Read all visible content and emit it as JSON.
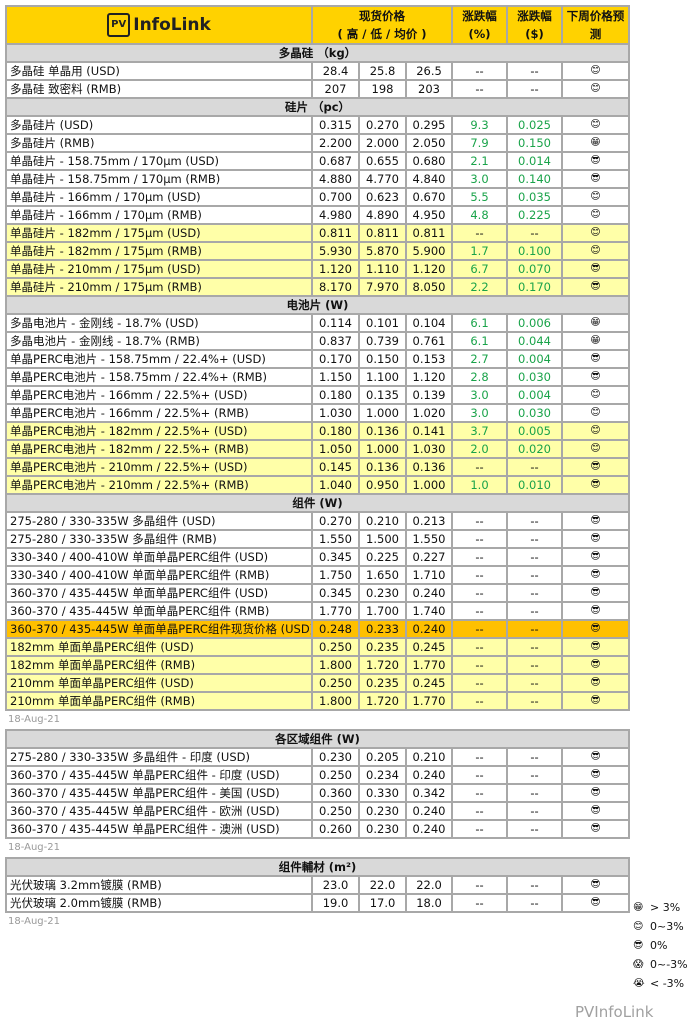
{
  "header": {
    "logo": "PV InfoLink",
    "logo_pv": "PV",
    "logo_text": "InfoLink",
    "price_line1": "现货价格",
    "price_line2": "( 高 / 低 / 均价 )",
    "chg_pct_line1": "涨跌幅",
    "chg_pct_line2": "(%)",
    "chg_abs_line1": "涨跌幅",
    "chg_abs_line2": "($)",
    "forecast_line1": "下周价格预",
    "forecast_line2": "测"
  },
  "emoji": {
    "grin": "😁",
    "smile": "😊",
    "cool": "😎",
    "scream": "😱",
    "cry": "😭"
  },
  "colors": {
    "header": "#ffd200",
    "section": "#d9d9d9",
    "highlight": "#ffffa8",
    "spot": "#ffc000",
    "up": "#1aa34a"
  },
  "main_sections": [
    {
      "title": "多晶硅 （kg）",
      "rows": [
        [
          "多晶硅 单晶用 (USD)",
          "28.4",
          "25.8",
          "26.5",
          "--",
          "--",
          "smile",
          ""
        ],
        [
          "多晶硅 致密料 (RMB)",
          "207",
          "198",
          "203",
          "--",
          "--",
          "smile",
          ""
        ]
      ]
    },
    {
      "title": "硅片 （pc）",
      "rows": [
        [
          "多晶硅片 (USD)",
          "0.315",
          "0.270",
          "0.295",
          "9.3",
          "0.025",
          "smile",
          ""
        ],
        [
          "多晶硅片 (RMB)",
          "2.200",
          "2.000",
          "2.050",
          "7.9",
          "0.150",
          "grin",
          ""
        ],
        [
          "单晶硅片 - 158.75mm / 170μm (USD)",
          "0.687",
          "0.655",
          "0.680",
          "2.1",
          "0.014",
          "cool",
          ""
        ],
        [
          "单晶硅片 - 158.75mm / 170μm (RMB)",
          "4.880",
          "4.770",
          "4.840",
          "3.0",
          "0.140",
          "cool",
          ""
        ],
        [
          "单晶硅片 - 166mm / 170μm (USD)",
          "0.700",
          "0.623",
          "0.670",
          "5.5",
          "0.035",
          "smile",
          ""
        ],
        [
          "单晶硅片 - 166mm / 170μm (RMB)",
          "4.980",
          "4.890",
          "4.950",
          "4.8",
          "0.225",
          "smile",
          ""
        ],
        [
          "单晶硅片 - 182mm / 175μm (USD)",
          "0.811",
          "0.811",
          "0.811",
          "--",
          "--",
          "smile",
          "hl"
        ],
        [
          "单晶硅片 - 182mm / 175μm (RMB)",
          "5.930",
          "5.870",
          "5.900",
          "1.7",
          "0.100",
          "smile",
          "hl"
        ],
        [
          "单晶硅片 - 210mm / 175μm (USD)",
          "1.120",
          "1.110",
          "1.120",
          "6.7",
          "0.070",
          "cool",
          "hl"
        ],
        [
          "单晶硅片 - 210mm / 175μm (RMB)",
          "8.170",
          "7.970",
          "8.050",
          "2.2",
          "0.170",
          "cool",
          "hl"
        ]
      ]
    },
    {
      "title": "电池片 (W)",
      "rows": [
        [
          "多晶电池片 - 金刚线 - 18.7% (USD)",
          "0.114",
          "0.101",
          "0.104",
          "6.1",
          "0.006",
          "grin",
          ""
        ],
        [
          "多晶电池片 - 金刚线 - 18.7% (RMB)",
          "0.837",
          "0.739",
          "0.761",
          "6.1",
          "0.044",
          "grin",
          ""
        ],
        [
          "单晶PERC电池片 - 158.75mm / 22.4%+ (USD)",
          "0.170",
          "0.150",
          "0.153",
          "2.7",
          "0.004",
          "cool",
          ""
        ],
        [
          "单晶PERC电池片 - 158.75mm / 22.4%+ (RMB)",
          "1.150",
          "1.100",
          "1.120",
          "2.8",
          "0.030",
          "cool",
          ""
        ],
        [
          "单晶PERC电池片 - 166mm / 22.5%+ (USD)",
          "0.180",
          "0.135",
          "0.139",
          "3.0",
          "0.004",
          "smile",
          ""
        ],
        [
          "单晶PERC电池片 - 166mm / 22.5%+ (RMB)",
          "1.030",
          "1.000",
          "1.020",
          "3.0",
          "0.030",
          "smile",
          ""
        ],
        [
          "单晶PERC电池片 - 182mm / 22.5%+ (USD)",
          "0.180",
          "0.136",
          "0.141",
          "3.7",
          "0.005",
          "smile",
          "hl"
        ],
        [
          "单晶PERC电池片 - 182mm / 22.5%+ (RMB)",
          "1.050",
          "1.000",
          "1.030",
          "2.0",
          "0.020",
          "smile",
          "hl"
        ],
        [
          "单晶PERC电池片 - 210mm / 22.5%+ (USD)",
          "0.145",
          "0.136",
          "0.136",
          "--",
          "--",
          "cool",
          "hl"
        ],
        [
          "单晶PERC电池片 - 210mm / 22.5%+ (RMB)",
          "1.040",
          "0.950",
          "1.000",
          "1.0",
          "0.010",
          "cool",
          "hl"
        ]
      ]
    },
    {
      "title": "组件 (W)",
      "rows": [
        [
          "275-280 / 330-335W 多晶组件 (USD)",
          "0.270",
          "0.210",
          "0.213",
          "--",
          "--",
          "cool",
          ""
        ],
        [
          "275-280 / 330-335W 多晶组件 (RMB)",
          "1.550",
          "1.500",
          "1.550",
          "--",
          "--",
          "cool",
          ""
        ],
        [
          "330-340 / 400-410W 单面单晶PERC组件 (USD)",
          "0.345",
          "0.225",
          "0.227",
          "--",
          "--",
          "cool",
          ""
        ],
        [
          "330-340 / 400-410W 单面单晶PERC组件 (RMB)",
          "1.750",
          "1.650",
          "1.710",
          "--",
          "--",
          "cool",
          ""
        ],
        [
          "360-370 / 435-445W 单面单晶PERC组件 (USD)",
          "0.345",
          "0.230",
          "0.240",
          "--",
          "--",
          "cool",
          ""
        ],
        [
          "360-370 / 435-445W 单面单晶PERC组件 (RMB)",
          "1.770",
          "1.700",
          "1.740",
          "--",
          "--",
          "cool",
          ""
        ],
        [
          "360-370 / 435-445W 单面单晶PERC组件现货价格 (USD)",
          "0.248",
          "0.233",
          "0.240",
          "--",
          "--",
          "cool",
          "spot"
        ],
        [
          "182mm 单面单晶PERC组件 (USD)",
          "0.250",
          "0.235",
          "0.245",
          "--",
          "--",
          "cool",
          "hl"
        ],
        [
          "182mm 单面单晶PERC组件 (RMB)",
          "1.800",
          "1.720",
          "1.770",
          "--",
          "--",
          "cool",
          "hl"
        ],
        [
          "210mm 单面单晶PERC组件 (USD)",
          "0.250",
          "0.235",
          "0.245",
          "--",
          "--",
          "cool",
          "hl"
        ],
        [
          "210mm 单面单晶PERC组件 (RMB)",
          "1.800",
          "1.720",
          "1.770",
          "--",
          "--",
          "cool",
          "hl"
        ]
      ]
    }
  ],
  "date": "18-Aug-21",
  "regional": {
    "title": "各区域组件 (W)",
    "rows": [
      [
        "275-280 / 330-335W  多晶组件 - 印度 (USD)",
        "0.230",
        "0.205",
        "0.210",
        "--",
        "--",
        "cool",
        ""
      ],
      [
        "360-370 / 435-445W 单晶PERC组件 - 印度 (USD)",
        "0.250",
        "0.234",
        "0.240",
        "--",
        "--",
        "cool",
        ""
      ],
      [
        "360-370 / 435-445W 单晶PERC组件 - 美国 (USD)",
        "0.360",
        "0.330",
        "0.342",
        "--",
        "--",
        "cool",
        ""
      ],
      [
        "360-370 / 435-445W 单晶PERC组件 - 欧洲 (USD)",
        "0.250",
        "0.230",
        "0.240",
        "--",
        "--",
        "cool",
        ""
      ],
      [
        "360-370 / 435-445W 单晶PERC组件 - 澳洲 (USD)",
        "0.260",
        "0.230",
        "0.240",
        "--",
        "--",
        "cool",
        ""
      ]
    ]
  },
  "auxiliary": {
    "title": "组件輔材 (m²)",
    "rows": [
      [
        "光伏玻璃 3.2mm镀膜 (RMB)",
        "23.0",
        "22.0",
        "22.0",
        "--",
        "--",
        "cool",
        ""
      ],
      [
        "光伏玻璃 2.0mm镀膜 (RMB)",
        "19.0",
        "17.0",
        "18.0",
        "--",
        "--",
        "cool",
        ""
      ]
    ]
  },
  "legend": [
    {
      "icon": "grin",
      "label": "> 3%"
    },
    {
      "icon": "smile",
      "label": "0~3%"
    },
    {
      "icon": "cool",
      "label": "0%"
    },
    {
      "icon": "scream",
      "label": "0~-3%"
    },
    {
      "icon": "cry",
      "label": "< -3%"
    }
  ],
  "watermark": "PVInfoLink"
}
